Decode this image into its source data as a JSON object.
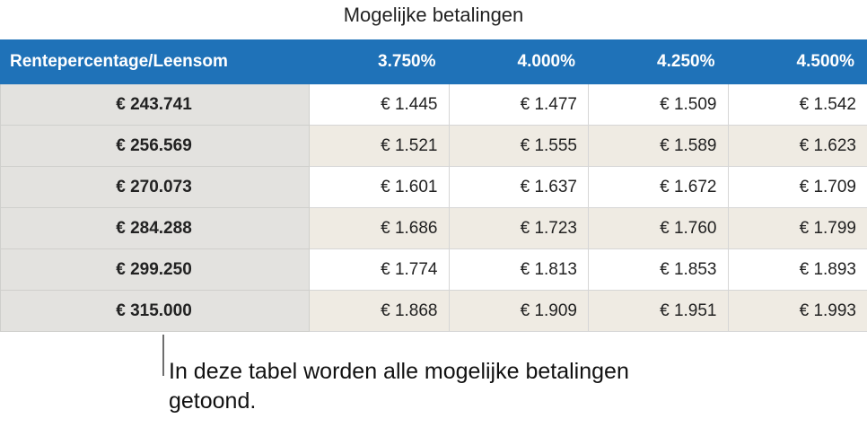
{
  "title": "Mogelijke betalingen",
  "table": {
    "headers": [
      "Rentepercentage/Leensom",
      "3.750%",
      "4.000%",
      "4.250%",
      "4.500%"
    ],
    "rows": [
      {
        "label": "€ 243.741",
        "values": [
          "€ 1.445",
          "€ 1.477",
          "€ 1.509",
          "€ 1.542"
        ]
      },
      {
        "label": "€ 256.569",
        "values": [
          "€ 1.521",
          "€ 1.555",
          "€ 1.589",
          "€ 1.623"
        ]
      },
      {
        "label": "€ 270.073",
        "values": [
          "€ 1.601",
          "€ 1.637",
          "€ 1.672",
          "€ 1.709"
        ]
      },
      {
        "label": "€ 284.288",
        "values": [
          "€ 1.686",
          "€ 1.723",
          "€ 1.760",
          "€ 1.799"
        ]
      },
      {
        "label": "€ 299.250",
        "values": [
          "€ 1.774",
          "€ 1.813",
          "€ 1.853",
          "€ 1.893"
        ]
      },
      {
        "label": "€ 315.000",
        "values": [
          "€ 1.868",
          "€ 1.909",
          "€ 1.951",
          "€ 1.993"
        ]
      }
    ]
  },
  "callout": "In deze tabel worden alle mogelijke betalingen getoond.",
  "colors": {
    "header_bg": "#1f72b8",
    "header_text": "#ffffff",
    "row_header_bg": "#e3e2df",
    "alt_row_bg": "#efebe3"
  }
}
